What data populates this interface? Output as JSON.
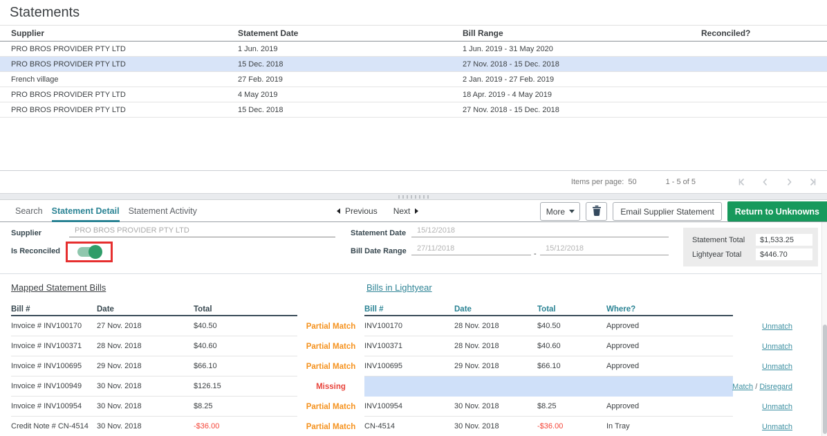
{
  "page": {
    "title": "Statements"
  },
  "statements": {
    "columns": [
      "Supplier",
      "Statement Date",
      "Bill Range",
      "Reconciled?"
    ],
    "rows": [
      {
        "supplier": "PRO BROS PROVIDER PTY LTD",
        "statement_date": "1 Jun. 2019",
        "bill_range": "1 Jun. 2019 - 31 May 2020",
        "reconciled": "",
        "selected": false
      },
      {
        "supplier": "PRO BROS PROVIDER PTY LTD",
        "statement_date": "15 Dec. 2018",
        "bill_range": "27 Nov. 2018 - 15 Dec. 2018",
        "reconciled": "",
        "selected": true
      },
      {
        "supplier": "French village",
        "statement_date": "27 Feb. 2019",
        "bill_range": "2 Jan. 2019 - 27 Feb. 2019",
        "reconciled": "",
        "selected": false
      },
      {
        "supplier": "PRO BROS PROVIDER PTY LTD",
        "statement_date": "4 May 2019",
        "bill_range": "18 Apr. 2019 - 4 May 2019",
        "reconciled": "",
        "selected": false
      },
      {
        "supplier": "PRO BROS PROVIDER PTY LTD",
        "statement_date": "15 Dec. 2018",
        "bill_range": "27 Nov. 2018 - 15 Dec. 2018",
        "reconciled": "",
        "selected": false
      }
    ]
  },
  "paginator": {
    "items_per_page_label": "Items per page:",
    "items_per_page": "50",
    "range": "1 - 5 of 5"
  },
  "tabs": [
    {
      "label": "Search"
    },
    {
      "label": "Statement Detail"
    },
    {
      "label": "Statement Activity"
    }
  ],
  "pager_nav": {
    "previous": "Previous",
    "next": "Next"
  },
  "toolbar": {
    "more_label": "More",
    "email_label": "Email Supplier Statement",
    "return_label": "Return to Unknowns"
  },
  "detail_form": {
    "supplier_label": "Supplier",
    "supplier_value": "PRO BROS PROVIDER PTY LTD",
    "is_reconciled_label": "Is Reconciled",
    "statement_date_label": "Statement Date",
    "statement_date_value": "15/12/2018",
    "bill_date_range_label": "Bill Date Range",
    "bill_date_from": "27/11/2018",
    "date_separator": "-",
    "bill_date_to": "15/12/2018",
    "statement_total_label": "Statement Total",
    "statement_total_value": "$1,533.25",
    "lightyear_total_label": "Lightyear Total",
    "lightyear_total_value": "$446.70"
  },
  "reconciliation": {
    "left_heading": "Mapped Statement Bills",
    "left_columns": [
      "Bill #",
      "Date",
      "Total"
    ],
    "right_heading": "Bills in Lightyear",
    "right_columns": [
      "Bill #",
      "Date",
      "Total",
      "Where?"
    ],
    "action_separator": " / ",
    "rows": [
      {
        "statement_bill": {
          "bill": "Invoice # INV100170",
          "date": "27 Nov. 2018",
          "total": "$40.50"
        },
        "status": "Partial Match",
        "lightyear_bill": {
          "bill": "INV100170",
          "date": "28 Nov. 2018",
          "total": "$40.50",
          "where": "Approved"
        },
        "actions": [
          "Unmatch"
        ]
      },
      {
        "statement_bill": {
          "bill": "Invoice # INV100371",
          "date": "28 Nov. 2018",
          "total": "$40.60"
        },
        "status": "Partial Match",
        "lightyear_bill": {
          "bill": "INV100371",
          "date": "28 Nov. 2018",
          "total": "$40.60",
          "where": "Approved"
        },
        "actions": [
          "Unmatch"
        ]
      },
      {
        "statement_bill": {
          "bill": "Invoice # INV100695",
          "date": "29 Nov. 2018",
          "total": "$66.10"
        },
        "status": "Partial Match",
        "lightyear_bill": {
          "bill": "INV100695",
          "date": "29 Nov. 2018",
          "total": "$66.10",
          "where": "Approved"
        },
        "actions": [
          "Unmatch"
        ]
      },
      {
        "statement_bill": {
          "bill": "Invoice # INV100949",
          "date": "30 Nov. 2018",
          "total": "$126.15"
        },
        "status": "Missing",
        "lightyear_bill": null,
        "actions": [
          "Match",
          "Disregard"
        ]
      },
      {
        "statement_bill": {
          "bill": "Invoice # INV100954",
          "date": "30 Nov. 2018",
          "total": "$8.25"
        },
        "status": "Partial Match",
        "lightyear_bill": {
          "bill": "INV100954",
          "date": "30 Nov. 2018",
          "total": "$8.25",
          "where": "Approved"
        },
        "actions": [
          "Unmatch"
        ]
      },
      {
        "statement_bill": {
          "bill": "Credit Note # CN-4514",
          "date": "30 Nov. 2018",
          "total": "-$36.00"
        },
        "status": "Partial Match",
        "lightyear_bill": {
          "bill": "CN-4514",
          "date": "30 Nov. 2018",
          "total": "-$36.00",
          "where": "In Tray"
        },
        "actions": [
          "Unmatch"
        ]
      }
    ]
  },
  "colors": {
    "accent_teal": "#2a8394",
    "status_partial_orange": "#f5921e",
    "status_missing_red": "#e8453c",
    "negative_amount_red": "#f44336",
    "return_button_green": "#17995c",
    "selected_row_blue": "#d8e4f8",
    "unmatched_row_blue": "#cfe0f9",
    "toggle_on_green": "#2f9d69",
    "annotation_box_red": "#e62f2f"
  }
}
